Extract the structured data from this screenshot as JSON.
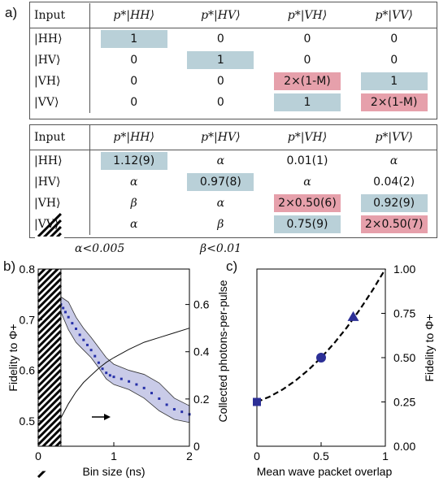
{
  "labels": {
    "a": "a)",
    "b": "b)",
    "c": "c)"
  },
  "table1": {
    "header": [
      "Input",
      "p*|HH⟩",
      "p*|HV⟩",
      "p*|VH⟩",
      "p*|VV⟩"
    ],
    "rows": [
      {
        "label": "|HH⟩",
        "cells": [
          "1",
          "0",
          "0",
          "0"
        ],
        "colors": [
          "blue",
          "",
          "",
          ""
        ]
      },
      {
        "label": "|HV⟩",
        "cells": [
          "0",
          "1",
          "0",
          "0"
        ],
        "colors": [
          "",
          "blue",
          "",
          ""
        ]
      },
      {
        "label": "|VH⟩",
        "cells": [
          "0",
          "0",
          "2×(1-M)",
          "1"
        ],
        "colors": [
          "",
          "",
          "pink",
          "blue"
        ]
      },
      {
        "label": "|VV⟩",
        "cells": [
          "0",
          "0",
          "1",
          "2×(1-M)"
        ],
        "colors": [
          "",
          "",
          "blue",
          "pink"
        ]
      }
    ]
  },
  "table2": {
    "header": [
      "Input",
      "p*|HH⟩",
      "p*|HV⟩",
      "p*|VH⟩",
      "p*|VV⟩"
    ],
    "rows": [
      {
        "label": "|HH⟩",
        "cells": [
          "1.12(9)",
          "α",
          "0.01(1)",
          "α"
        ],
        "colors": [
          "blue",
          "",
          "",
          ""
        ]
      },
      {
        "label": "|HV⟩",
        "cells": [
          "α",
          "0.97(8)",
          "α",
          "0.04(2)"
        ],
        "colors": [
          "",
          "blue",
          "",
          ""
        ]
      },
      {
        "label": "|VH⟩",
        "cells": [
          "β",
          "α",
          "2×0.50(6)",
          "0.92(9)"
        ],
        "colors": [
          "",
          "",
          "pink",
          "blue"
        ]
      },
      {
        "label": "|VV⟩",
        "cells": [
          "α",
          "β",
          "0.75(9)",
          "2×0.50(7)"
        ],
        "colors": [
          "",
          "",
          "blue",
          "pink"
        ]
      }
    ]
  },
  "footnote": {
    "alpha": "α<0.005",
    "beta": "β<0.01"
  },
  "chart_data": [
    {
      "type": "line",
      "panel": "b",
      "xlabel": "Bin size (ns)",
      "ylabel_left": "Fidelity to Φ+",
      "ylabel_right": "Collected photons-per-pulse",
      "xlim": [
        0,
        2
      ],
      "ylim_left": [
        0.45,
        0.8
      ],
      "ylim_right": [
        0,
        0.75
      ],
      "x_ticks": [
        "0",
        "1",
        "2"
      ],
      "y_left_ticks": [
        "0.5",
        "0.6",
        "0.7",
        "0.8"
      ],
      "y_right_ticks": [
        "0",
        "0.2",
        "0.4",
        "0.6"
      ],
      "excluded_region_x": [
        0,
        0.3
      ],
      "series": [
        {
          "axis": "left",
          "style": "dotted-blue",
          "x": [
            0.3,
            0.33,
            0.36,
            0.4,
            0.45,
            0.5,
            0.55,
            0.6,
            0.65,
            0.7,
            0.75,
            0.8,
            0.85,
            0.9,
            0.95,
            1.0,
            1.1,
            1.2,
            1.3,
            1.4,
            1.5,
            1.6,
            1.7,
            1.8,
            1.9,
            2.0
          ],
          "y": [
            0.73,
            0.723,
            0.715,
            0.705,
            0.693,
            0.682,
            0.67,
            0.66,
            0.65,
            0.64,
            0.628,
            0.615,
            0.603,
            0.595,
            0.59,
            0.587,
            0.583,
            0.578,
            0.572,
            0.565,
            0.555,
            0.544,
            0.532,
            0.523,
            0.518,
            0.513
          ]
        },
        {
          "axis": "left",
          "style": "band-upper",
          "x": [
            0.3,
            0.4,
            0.5,
            0.6,
            0.7,
            0.8,
            0.9,
            1.0,
            1.2,
            1.4,
            1.6,
            1.8,
            2.0
          ],
          "y": [
            0.745,
            0.735,
            0.705,
            0.683,
            0.665,
            0.645,
            0.625,
            0.612,
            0.6,
            0.592,
            0.575,
            0.545,
            0.53
          ]
        },
        {
          "axis": "left",
          "style": "band-lower",
          "x": [
            0.3,
            0.4,
            0.5,
            0.6,
            0.7,
            0.8,
            0.9,
            1.0,
            1.2,
            1.4,
            1.6,
            1.8,
            2.0
          ],
          "y": [
            0.715,
            0.68,
            0.655,
            0.64,
            0.625,
            0.605,
            0.583,
            0.572,
            0.562,
            0.545,
            0.52,
            0.503,
            0.497
          ]
        },
        {
          "axis": "right",
          "style": "solid-black",
          "x": [
            0.3,
            0.4,
            0.5,
            0.6,
            0.7,
            0.8,
            0.9,
            1.0,
            1.2,
            1.4,
            1.6,
            1.8,
            2.0
          ],
          "y": [
            0.12,
            0.18,
            0.23,
            0.27,
            0.3,
            0.33,
            0.355,
            0.375,
            0.41,
            0.44,
            0.46,
            0.48,
            0.5
          ]
        }
      ]
    },
    {
      "type": "scatter",
      "panel": "c",
      "xlabel": "Mean wave packet overlap",
      "ylabel_right": "Fidelity to Φ+",
      "xlim": [
        0,
        1
      ],
      "ylim": [
        0,
        1
      ],
      "x_ticks": [
        "0",
        "0.5",
        "1"
      ],
      "y_ticks": [
        "0.00",
        "0.25",
        "0.50",
        "0.75",
        "1.00"
      ],
      "points": [
        {
          "x": 0,
          "y": 0.25,
          "marker": "square"
        },
        {
          "x": 0.5,
          "y": 0.5,
          "marker": "circle"
        },
        {
          "x": 0.75,
          "y": 0.73,
          "marker": "triangle"
        }
      ],
      "curve": {
        "style": "dashed-black",
        "x": [
          0,
          0.1,
          0.2,
          0.3,
          0.4,
          0.5,
          0.6,
          0.7,
          0.8,
          0.9,
          1.0
        ],
        "y": [
          0.25,
          0.28,
          0.32,
          0.37,
          0.43,
          0.5,
          0.58,
          0.67,
          0.77,
          0.88,
          1.0
        ]
      }
    }
  ],
  "colors": {
    "blue_cell": "#b9d0d8",
    "pink_cell": "#e6a0ab",
    "series": "#2630a8",
    "band": "#c9cbe8",
    "marker": "#2c2f96"
  }
}
